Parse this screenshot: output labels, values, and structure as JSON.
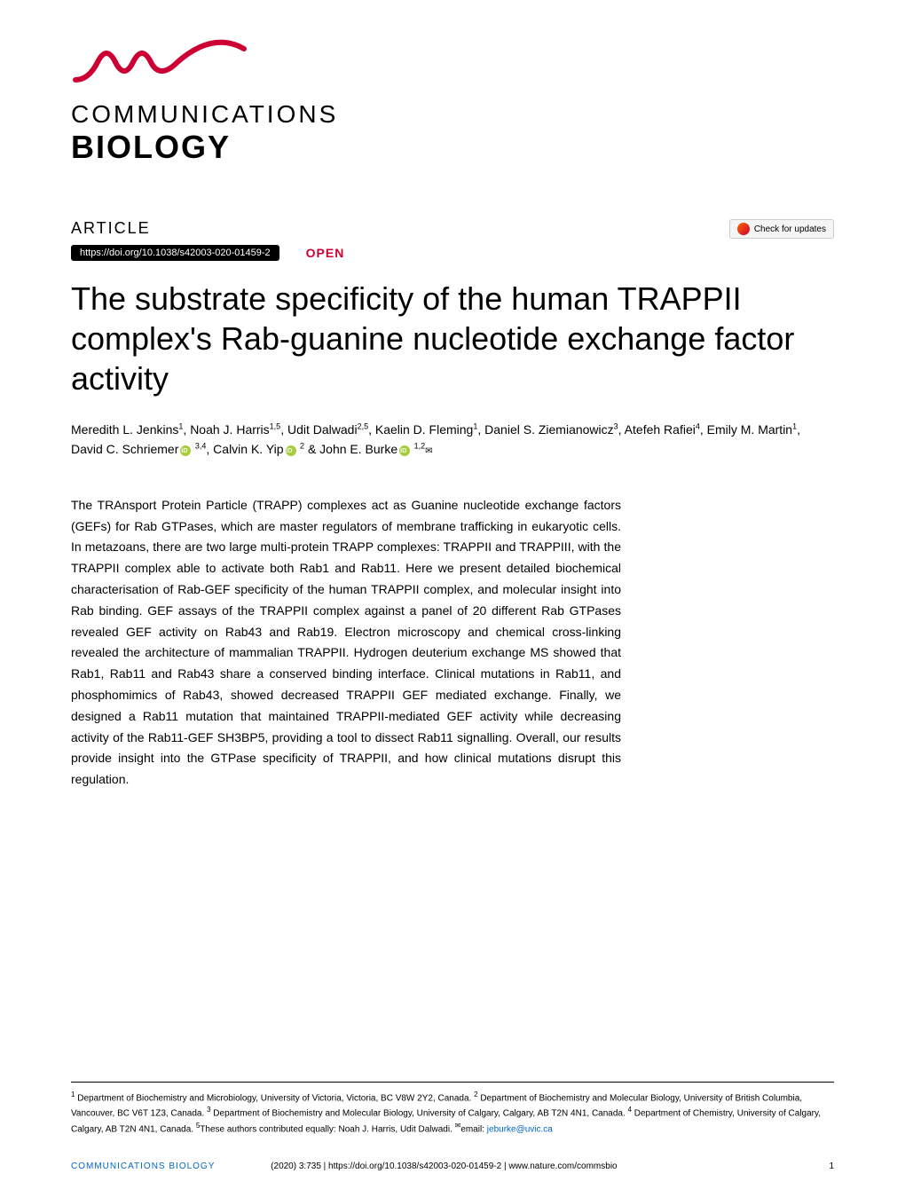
{
  "journal": {
    "line1": "COMMUNICATIONS",
    "line2": "BIOLOGY",
    "logo_color": "#cc0033"
  },
  "header": {
    "article_label": "ARTICLE",
    "doi": "https://doi.org/10.1038/s42003-020-01459-2",
    "open_label": "OPEN",
    "check_updates": "Check for updates"
  },
  "title": "The substrate specificity of the human TRAPPII complex's Rab-guanine nucleotide exchange factor activity",
  "authors_html": "Meredith L. Jenkins<sup>1</sup>, Noah J. Harris<sup>1,5</sup>, Udit Dalwadi<sup>2,5</sup>, Kaelin D. Fleming<sup>1</sup>, Daniel S. Ziemianowicz<sup>3</sup>, Atefeh Rafiei<sup>4</sup>, Emily M. Martin<sup>1</sup>, David C. Schriemer<span class='orcid-icon' data-name='orcid-icon' data-interactable='false'></span><sup> 3,4</sup>, Calvin K. Yip<span class='orcid-icon' data-name='orcid-icon' data-interactable='false'></span><sup> 2</sup> & John E. Burke<span class='orcid-icon' data-name='orcid-icon' data-interactable='false'></span><sup> 1,2</sup><span class='envelope-icon' data-name='envelope-icon' data-interactable='false'>✉</span>",
  "abstract": "The TRAnsport Protein Particle (TRAPP) complexes act as Guanine nucleotide exchange factors (GEFs) for Rab GTPases, which are master regulators of membrane trafficking in eukaryotic cells. In metazoans, there are two large multi-protein TRAPP complexes: TRAPPII and TRAPPIII, with the TRAPPII complex able to activate both Rab1 and Rab11. Here we present detailed biochemical characterisation of Rab-GEF specificity of the human TRAPPII complex, and molecular insight into Rab binding. GEF assays of the TRAPPII complex against a panel of 20 different Rab GTPases revealed GEF activity on Rab43 and Rab19. Electron microscopy and chemical cross-linking revealed the architecture of mammalian TRAPPII. Hydrogen deuterium exchange MS showed that Rab1, Rab11 and Rab43 share a conserved binding interface. Clinical mutations in Rab11, and phosphomimics of Rab43, showed decreased TRAPPII GEF mediated exchange. Finally, we designed a Rab11 mutation that maintained TRAPPII-mediated GEF activity while decreasing activity of the Rab11-GEF SH3BP5, providing a tool to dissect Rab11 signalling. Overall, our results provide insight into the GTPase specificity of TRAPPII, and how clinical mutations disrupt this regulation.",
  "affiliations_html": "<sup>1</sup> Department of Biochemistry and Microbiology, University of Victoria, Victoria, BC V8W 2Y2, Canada. <sup>2</sup> Department of Biochemistry and Molecular Biology, University of British Columbia, Vancouver, BC V6T 1Z3, Canada. <sup>3</sup> Department of Biochemistry and Molecular Biology, University of Calgary, Calgary, AB T2N 4N1, Canada. <sup>4</sup> Department of Chemistry, University of Calgary, Calgary, AB T2N 4N1, Canada. <sup>5</sup>These authors contributed equally: Noah J. Harris, Udit Dalwadi. <sup>✉</sup>email: <span class='email-link' data-name='email-link' data-interactable='true'>jeburke@uvic.ca</span>",
  "footer": {
    "journal": "COMMUNICATIONS BIOLOGY",
    "citation": "(2020) 3:735 | https://doi.org/10.1038/s42003-020-01459-2 | www.nature.com/commsbio",
    "page": "1"
  },
  "colors": {
    "brand_red": "#cc0033",
    "link_blue": "#0066cc",
    "text_black": "#000000",
    "background": "#ffffff",
    "orcid_green": "#a6ce39"
  },
  "typography": {
    "title_fontsize": 36,
    "title_weight": 300,
    "body_fontsize": 14,
    "footnote_fontsize": 10,
    "journal_line1_fontsize": 28,
    "journal_line2_fontsize": 36
  }
}
